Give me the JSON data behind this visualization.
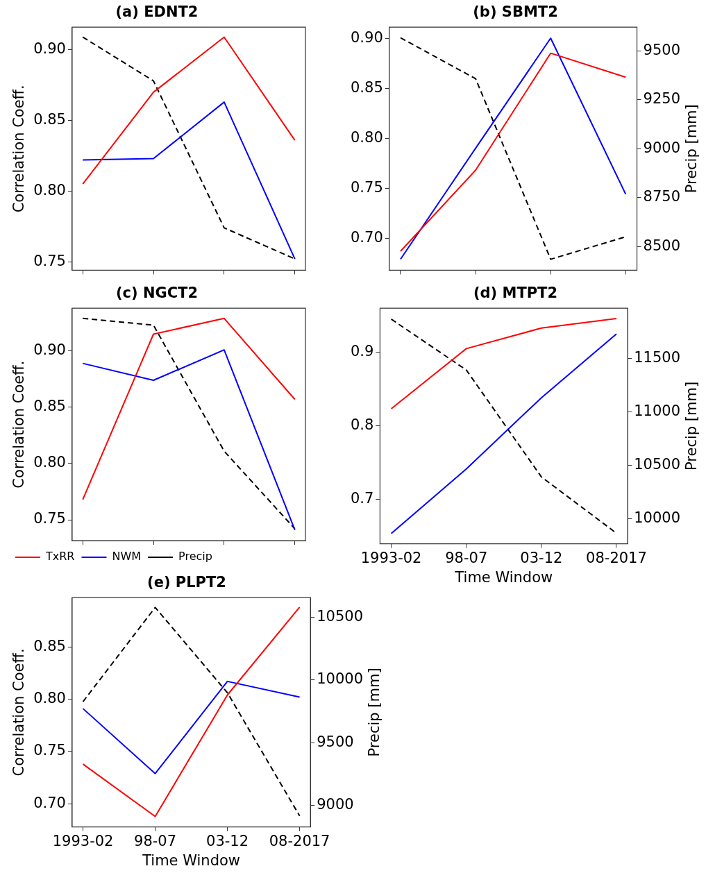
{
  "chart_data": [
    {
      "type": "line",
      "title": "(a) EDNT2",
      "ylabel": "Correlation Coeff.",
      "categories": [
        null,
        null,
        null,
        null
      ],
      "ylim": [
        0.744,
        0.916
      ],
      "yticks": [
        {
          "value": 0.75,
          "label": "0.75"
        },
        {
          "value": 0.8,
          "label": "0.80"
        },
        {
          "value": 0.85,
          "label": "0.85"
        },
        {
          "value": 0.9,
          "label": "0.90"
        }
      ],
      "tick_labels": "y",
      "marker": "none",
      "series": [
        {
          "color": "#ff0000",
          "values": [
            0.805,
            0.87,
            0.909,
            0.836
          ]
        },
        {
          "color": "#0000ff",
          "values": [
            0.822,
            0.823,
            0.863,
            0.752
          ]
        },
        {
          "color": "#000000",
          "line_style": "dashed",
          "values": [
            0.909,
            0.878,
            0.774,
            0.752
          ]
        }
      ]
    },
    {
      "type": "line",
      "title": "(b) SBMT2",
      "y2label": "Precip [mm]",
      "categories": [
        null,
        null,
        null,
        null
      ],
      "ylim": [
        0.668,
        0.911
      ],
      "yticks": [
        {
          "value": 0.7,
          "label": "0.70"
        },
        {
          "value": 0.75,
          "label": "0.75"
        },
        {
          "value": 0.8,
          "label": "0.80"
        },
        {
          "value": 0.85,
          "label": "0.85"
        },
        {
          "value": 0.9,
          "label": "0.90"
        }
      ],
      "y2lim": [
        8379,
        9620
      ],
      "y2ticks": [
        8500,
        8750,
        9000,
        9250,
        9500
      ],
      "tick_labels": "y",
      "marker": "none",
      "series": [
        {
          "color": "#ff0000",
          "values": [
            0.687,
            0.768,
            0.885,
            0.861
          ]
        },
        {
          "color": "#0000ff",
          "values": [
            0.679,
            0.79,
            0.9,
            0.744
          ]
        },
        {
          "color": "#000000",
          "line_style": "dashed",
          "axis": "y2",
          "values": [
            9566,
            9357,
            8435,
            8550
          ]
        }
      ]
    },
    {
      "type": "line",
      "title": "(c) NGCT2",
      "ylabel": "Correlation Coeff.",
      "categories": [
        null,
        null,
        null,
        null
      ],
      "ylim": [
        0.7315,
        0.938
      ],
      "yticks": [
        {
          "value": 0.75,
          "label": "0.75"
        },
        {
          "value": 0.8,
          "label": "0.80"
        },
        {
          "value": 0.85,
          "label": "0.85"
        },
        {
          "value": 0.9,
          "label": "0.90"
        }
      ],
      "tick_labels": "y",
      "marker": "none",
      "legend": "bottom left",
      "series": [
        {
          "name": "TxRR",
          "color": "#ff0000",
          "values": [
            0.768,
            0.915,
            0.929,
            0.857
          ]
        },
        {
          "name": "NWM",
          "color": "#0000ff",
          "values": [
            0.889,
            0.874,
            0.901,
            0.741
          ]
        },
        {
          "name": "Precip",
          "color": "#000000",
          "line_style": "dashed",
          "values": [
            0.929,
            0.923,
            0.811,
            0.742
          ]
        }
      ]
    },
    {
      "type": "line",
      "title": "(d) MTPT2",
      "xlabel": "Time Window",
      "y2label": "Precip [mm]",
      "categories": [
        "1993-02",
        "98-07",
        "03-12",
        "08-2017"
      ],
      "ylim": [
        0.639,
        0.96
      ],
      "yticks": [
        0.7,
        0.8,
        0.9
      ],
      "y2lim": [
        9768,
        11969
      ],
      "y2ticks": [
        10000,
        10500,
        11000,
        11500
      ],
      "marker": "none",
      "series": [
        {
          "color": "#ff0000",
          "values": [
            0.823,
            0.905,
            0.933,
            0.946
          ]
        },
        {
          "color": "#0000ff",
          "values": [
            0.653,
            0.741,
            0.838,
            0.925
          ]
        },
        {
          "color": "#000000",
          "line_style": "dashed",
          "axis": "y2",
          "values": [
            11867,
            11392,
            10393,
            9867
          ]
        }
      ]
    },
    {
      "type": "line",
      "title": "(e) PLPT2",
      "xlabel": "Time Window",
      "ylabel": "Correlation Coeff.",
      "y2label": "Precip [mm]",
      "categories": [
        "1993-02",
        "98-07",
        "03-12",
        "08-2017"
      ],
      "ylim": [
        0.678,
        0.897
      ],
      "yticks": [
        {
          "value": 0.7,
          "label": "0.70"
        },
        {
          "value": 0.75,
          "label": "0.75"
        },
        {
          "value": 0.8,
          "label": "0.80"
        },
        {
          "value": 0.85,
          "label": "0.85"
        }
      ],
      "y2lim": [
        8830,
        10655
      ],
      "y2ticks": [
        9000,
        9500,
        10000,
        10500
      ],
      "marker": "none",
      "series": [
        {
          "color": "#ff0000",
          "values": [
            0.738,
            0.688,
            0.804,
            0.888
          ]
        },
        {
          "color": "#0000ff",
          "values": [
            0.791,
            0.729,
            0.817,
            0.802
          ]
        },
        {
          "color": "#000000",
          "line_style": "dashed",
          "axis": "y2",
          "values": [
            9827,
            10577,
            9898,
            8918
          ]
        }
      ]
    }
  ]
}
